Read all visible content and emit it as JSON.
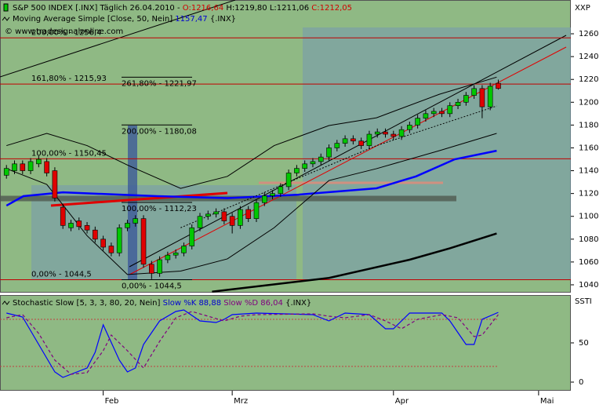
{
  "chart_data": [
    {
      "type": "candlestick",
      "header": {
        "symbol": "S&P 500 INDEX [.INX]",
        "period": "Täglich 26.04.2010 -",
        "o": "O:1216,64",
        "h": "H:1219,80",
        "l": "L:1211,06",
        "c": "C:1212,05",
        "ma_name": "Moving Average Simple [Close, 50, Nein]",
        "ma_value": "1157,47",
        "ma_suffix": "{.INX}",
        "source": "© www.tradesignalonline.com"
      },
      "axis_label": "XXP",
      "up_color": "#00c800",
      "down_color": "#e00000",
      "open": [
        1136,
        1140,
        1146,
        1140,
        1146,
        1148,
        1140,
        1108,
        1090,
        1096,
        1092,
        1088,
        1080,
        1074,
        1068,
        1090,
        1094,
        1098,
        1058,
        1050,
        1062,
        1066,
        1068,
        1074,
        1090,
        1100,
        1102,
        1104,
        1100,
        1092,
        1106,
        1098,
        1112,
        1118,
        1120,
        1126,
        1138,
        1142,
        1146,
        1148,
        1152,
        1160,
        1164,
        1168,
        1166,
        1162,
        1172,
        1174,
        1172,
        1170,
        1176,
        1180,
        1186,
        1190,
        1192,
        1190,
        1197,
        1200,
        1206,
        1212,
        1196,
        1216.64
      ],
      "high": [
        1145,
        1149,
        1149,
        1151,
        1153,
        1151,
        1143,
        1111,
        1097,
        1099,
        1095,
        1091,
        1083,
        1077,
        1093,
        1097,
        1101,
        1101,
        1061,
        1065,
        1069,
        1071,
        1077,
        1093,
        1103,
        1105,
        1107,
        1107,
        1103,
        1109,
        1109,
        1115,
        1121,
        1123,
        1129,
        1141,
        1145,
        1149,
        1151,
        1155,
        1163,
        1167,
        1171,
        1171,
        1169,
        1175,
        1177,
        1177,
        1175,
        1179,
        1183,
        1189,
        1193,
        1195,
        1195,
        1200,
        1203,
        1209,
        1215,
        1215,
        1217,
        1219.8
      ],
      "low": [
        1133,
        1137,
        1137,
        1137,
        1143,
        1135,
        1113,
        1089,
        1087,
        1088,
        1085,
        1077,
        1070,
        1065,
        1065,
        1087,
        1091,
        1055,
        1045,
        1047,
        1059,
        1063,
        1065,
        1071,
        1087,
        1097,
        1099,
        1093,
        1085,
        1089,
        1095,
        1095,
        1109,
        1115,
        1117,
        1123,
        1135,
        1139,
        1143,
        1145,
        1149,
        1157,
        1161,
        1163,
        1159,
        1159,
        1169,
        1169,
        1167,
        1167,
        1173,
        1177,
        1183,
        1187,
        1187,
        1187,
        1194,
        1197,
        1203,
        1186,
        1193,
        1211.06
      ],
      "close": [
        1142,
        1146,
        1140,
        1148,
        1150,
        1138,
        1116,
        1092,
        1094,
        1091,
        1088,
        1080,
        1073,
        1068,
        1090,
        1094,
        1098,
        1058,
        1050,
        1062,
        1066,
        1068,
        1074,
        1090,
        1100,
        1102,
        1104,
        1096,
        1092,
        1106,
        1098,
        1112,
        1118,
        1120,
        1126,
        1138,
        1142,
        1146,
        1148,
        1152,
        1160,
        1164,
        1168,
        1166,
        1162,
        1172,
        1174,
        1172,
        1170,
        1176,
        1180,
        1186,
        1190,
        1192,
        1190,
        1197,
        1200,
        1206,
        1212,
        1196,
        1214,
        1212.05
      ],
      "series": [
        {
          "color": "#0000ff",
          "width": 2.5,
          "x": [
            0,
            2.1,
            7,
            18.7,
            27.4,
            36.2,
            45.9,
            50.8,
            55.6,
            60.8
          ],
          "values": [
            1109.4,
            1117.7,
            1121,
            1117.7,
            1116,
            1119,
            1124.6,
            1135,
            1150,
            1157.47
          ]
        },
        {
          "color": "#000000",
          "width": 2.5,
          "x": [
            25.5,
            40,
            50,
            55,
            60.8
          ],
          "values": [
            1034,
            1046,
            1062,
            1072,
            1085
          ]
        },
        {
          "color": "#000000",
          "width": 1,
          "x": [
            0,
            5,
            10,
            15,
            21.6,
            27.4,
            33.2,
            40,
            45.9,
            53.7,
            60.8
          ],
          "values": [
            1162,
            1172.7,
            1162,
            1145,
            1124.5,
            1135,
            1162,
            1179.6,
            1186.4,
            1207,
            1222
          ]
        },
        {
          "color": "#000000",
          "width": 1,
          "x": [
            0,
            5,
            10,
            15,
            21.6,
            27.4,
            33.2,
            40,
            45.9,
            53.7,
            60.8
          ],
          "values": [
            1141.8,
            1128,
            1083,
            1049,
            1052,
            1062.7,
            1090,
            1131.4,
            1141.8,
            1157.6,
            1172.7
          ]
        },
        {
          "color": "#000000",
          "width": 1,
          "dash": "2,2",
          "x": [
            21.6,
            33.2,
            45.9,
            60.8
          ],
          "values": [
            1090,
            1124.6,
            1162,
            1196.7
          ]
        }
      ],
      "fib_levels": [
        {
          "value": 1256.4,
          "label": "200,00% - 1256,4"
        },
        {
          "value": 1215.93,
          "label": "161,80% - 1215,93"
        },
        {
          "value": 1150.45,
          "label": "100,00% - 1150,45"
        },
        {
          "value": 1044.5,
          "label": "0,00% - 1044,5"
        }
      ],
      "fib_levels_2": [
        {
          "value": 1221.97,
          "label": "261,80% - 1221,97"
        },
        {
          "value": 1180.08,
          "label": "200,00% - 1180,08"
        },
        {
          "value": 1112.23,
          "label": "100,00% - 1112,23"
        },
        {
          "value": 1044.5,
          "label": "0,00% - 1044,5"
        }
      ],
      "xlim": [
        -0.8,
        70
      ],
      "xticks": [
        {
          "value": 12,
          "label": "Feb"
        },
        {
          "value": 28,
          "label": "Mrz"
        },
        {
          "value": 48,
          "label": "Apr"
        },
        {
          "value": 66,
          "label": "Mai"
        }
      ],
      "ylim": [
        1033.8,
        1289.6
      ],
      "yticks": [
        1040,
        1060,
        1080,
        1100,
        1120,
        1140,
        1160,
        1180,
        1200,
        1220,
        1240,
        1260
      ]
    },
    {
      "type": "line",
      "header": {
        "name": "Stochastic Slow [5, 3, 3, 80, 20, Nein]",
        "k": "Slow %K 88,88",
        "d": "Slow %D 86,04",
        "suffix": "{.INX}"
      },
      "axis_label": "SSTI",
      "series": [
        {
          "color": "#0000ff",
          "x": [
            0,
            2,
            4,
            6,
            7,
            10,
            11,
            12,
            14,
            15,
            16,
            17,
            19,
            21,
            22,
            24,
            26,
            27,
            28,
            31,
            38,
            40,
            42,
            45,
            47,
            48,
            50,
            54,
            55,
            57,
            58,
            59,
            61
          ],
          "values": [
            88,
            83,
            48,
            13,
            6,
            18,
            38,
            73,
            28,
            13,
            18,
            48,
            78,
            90,
            92,
            78,
            76,
            80,
            86,
            88,
            86,
            78,
            88,
            86,
            68,
            68,
            88,
            88,
            78,
            48,
            48,
            80,
            88.88
          ]
        },
        {
          "color": "#800080",
          "dash": "4,3",
          "x": [
            0,
            2,
            4,
            6,
            8,
            10,
            12,
            13,
            15,
            17,
            19,
            21,
            23,
            25,
            27,
            29,
            31,
            38,
            40,
            42,
            45,
            47,
            49,
            51,
            54,
            56,
            58,
            59,
            61
          ],
          "values": [
            82,
            86,
            62,
            28,
            10,
            12,
            40,
            60,
            40,
            18,
            52,
            82,
            90,
            84,
            78,
            84,
            86,
            87,
            84,
            82,
            86,
            78,
            68,
            80,
            86,
            82,
            58,
            60,
            86.04
          ]
        }
      ],
      "levels": [
        20,
        80
      ],
      "xlim": [
        -0.8,
        70
      ],
      "ylim": [
        -10,
        110
      ],
      "yticks": [
        0,
        50
      ]
    }
  ]
}
